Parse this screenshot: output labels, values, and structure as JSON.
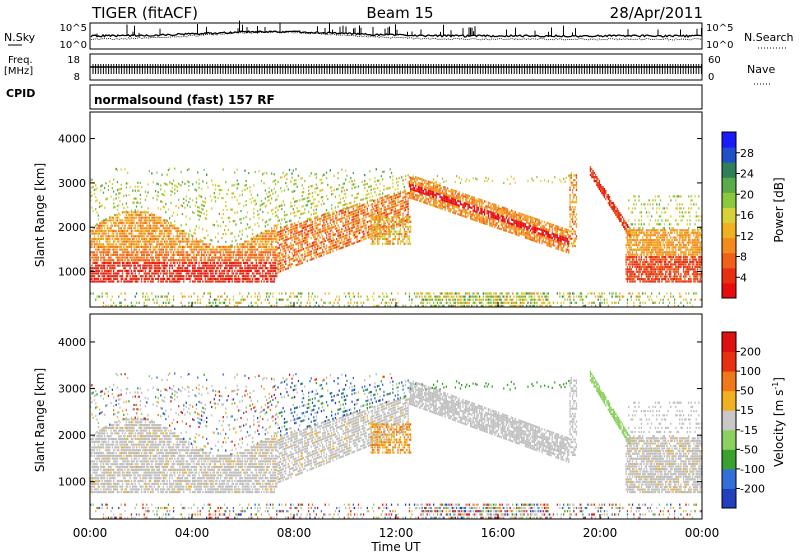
{
  "header": {
    "station": "TIGER (fitACF)",
    "beam": "Beam 15",
    "date": "28/Apr/2011"
  },
  "top_panels": {
    "nsky_label": "N.Sky",
    "nsky_ticks": [
      "10^5",
      "10^0"
    ],
    "nsearch_label": "N.Search",
    "nsearch_ticks": [
      "10^5",
      "10^0"
    ],
    "freq_label_1": "Freq.",
    "freq_label_2": "[MHz]",
    "freq_ticks": [
      "18",
      "8"
    ],
    "nave_label": "Nave",
    "nave_ticks": [
      "60",
      "0"
    ],
    "cpid_label": "CPID",
    "cpid_text": "normalsound (fast) 157 RF"
  },
  "chart_data": [
    {
      "type": "heatmap",
      "title": "",
      "xlabel": "Time UT",
      "ylabel": "Slant Range [km]",
      "x_ticks": [
        "00:00",
        "04:00",
        "08:00",
        "12:00",
        "16:00",
        "20:00",
        "00:00"
      ],
      "y_ticks": [
        1000,
        2000,
        3000,
        4000
      ],
      "ylim": [
        200,
        4600
      ],
      "colorbar": {
        "label": "Power [dB]",
        "ticks": [
          4,
          8,
          12,
          16,
          20,
          24,
          28
        ],
        "range": [
          0,
          32
        ],
        "colors": [
          "#1a1aff",
          "#2050c8",
          "#2f7f5a",
          "#5aaa4a",
          "#8cc83c",
          "#d8d23a",
          "#f0b020",
          "#f48a1c",
          "#f06018",
          "#e83010",
          "#e80c0c"
        ]
      }
    },
    {
      "type": "heatmap",
      "title": "",
      "xlabel": "Time UT",
      "ylabel": "Slant Range [km]",
      "x_ticks": [
        "00:00",
        "04:00",
        "08:00",
        "12:00",
        "16:00",
        "20:00",
        "00:00"
      ],
      "y_ticks": [
        1000,
        2000,
        3000,
        4000
      ],
      "ylim": [
        200,
        4600
      ],
      "colorbar": {
        "label": "Velocity [m s-1]",
        "label_main": "Velocity [m s",
        "label_sup": "-1",
        "label_end": "]",
        "ticks": [
          "200",
          "100",
          "50",
          "15",
          "-15",
          "-50",
          "-100",
          "-200"
        ],
        "colors": [
          "#2040c0",
          "#3070d8",
          "#3aa030",
          "#8cd060",
          "#c8c8c8",
          "#f0b020",
          "#f07818",
          "#e83010",
          "#e01010"
        ]
      }
    }
  ],
  "colors": {
    "ground_scatter": "#bebebe"
  }
}
